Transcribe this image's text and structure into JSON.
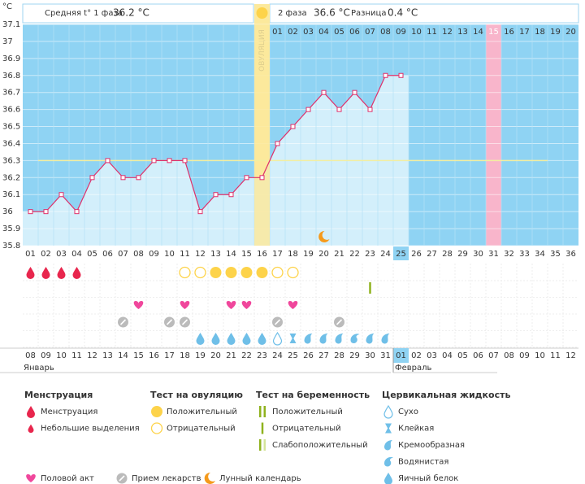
{
  "chart_data": {
    "type": "line",
    "y_unit": "°C",
    "header": {
      "phase1_label": "Средняя t° 1 фаза",
      "phase1_value": "36.2 °C",
      "phase2_label": "2 фаза",
      "phase2_value": "36.6 °C",
      "diff_label": "Разница",
      "diff_value": "0.4 °C"
    },
    "ovulation_label": "ОВУЛЯЦИЯ",
    "ovulation_day": "16",
    "today": "25",
    "expected_period": "31",
    "categories": [
      "01",
      "02",
      "03",
      "04",
      "05",
      "06",
      "07",
      "08",
      "09",
      "10",
      "11",
      "12",
      "13",
      "14",
      "15",
      "16",
      "17",
      "18",
      "19",
      "20",
      "21",
      "22",
      "23",
      "24",
      "25",
      "26",
      "27",
      "28",
      "29",
      "30",
      "31",
      "32",
      "33",
      "34",
      "35",
      "36"
    ],
    "post_ovulation_days": [
      null,
      null,
      null,
      null,
      null,
      null,
      null,
      null,
      null,
      null,
      null,
      null,
      null,
      null,
      null,
      null,
      "01",
      "02",
      "03",
      "04",
      "05",
      "06",
      "07",
      "08",
      "09",
      "10",
      "11",
      "12",
      "13",
      "14",
      "15",
      "16",
      "17",
      "18",
      "19",
      "20"
    ],
    "dates": [
      "08",
      "09",
      "10",
      "11",
      "12",
      "13",
      "14",
      "15",
      "16",
      "17",
      "18",
      "19",
      "20",
      "21",
      "22",
      "23",
      "24",
      "25",
      "26",
      "27",
      "28",
      "29",
      "30",
      "31",
      "01",
      "02",
      "03",
      "04",
      "05",
      "06",
      "07",
      "08",
      "09",
      "10",
      "11",
      "12"
    ],
    "weekend": [
      false,
      false,
      true,
      true,
      false,
      false,
      false,
      false,
      false,
      true,
      true,
      false,
      false,
      false,
      false,
      false,
      true,
      true,
      false,
      false,
      false,
      false,
      false,
      true,
      false,
      false,
      false,
      false,
      false,
      false,
      true,
      true,
      false,
      false,
      false,
      false
    ],
    "weekend_color": "#d0004b",
    "months": [
      "Январь",
      "Февраль"
    ],
    "values": [
      36,
      36,
      36.1,
      36,
      36.2,
      36.3,
      36.2,
      36.2,
      36.3,
      36.3,
      36.3,
      36,
      36.1,
      36.1,
      36.2,
      36.2,
      36.4,
      36.5,
      36.6,
      36.7,
      36.6,
      36.7,
      36.6,
      36.8,
      36.8,
      null,
      null,
      null,
      null,
      null,
      null,
      null,
      null,
      null,
      null,
      null
    ],
    "color": "#e0306a",
    "coverline": 36.3,
    "ylim": [
      35.8,
      37.1
    ],
    "yticks": [
      35.8,
      35.9,
      36,
      36.1,
      36.2,
      36.3,
      36.4,
      36.5,
      36.6,
      36.7,
      36.8,
      36.9,
      37,
      37.1
    ],
    "grid": true,
    "legend_groups": [
      {
        "title": "Менструация",
        "items": [
          "Менструация",
          "Небольшие выделения"
        ],
        "row": [
          "Менструация",
          "Менструация",
          "Менструация",
          "Менструация",
          null,
          null,
          null,
          null,
          null,
          null,
          null,
          null,
          null,
          null,
          null,
          null,
          null,
          null,
          null,
          null,
          null,
          null,
          null,
          null,
          null,
          null,
          null,
          null,
          null,
          null,
          null,
          null,
          null,
          null,
          null,
          null
        ]
      },
      {
        "title": "Тест на овуляцию",
        "items": [
          "Положительный",
          "Отрицательный"
        ],
        "row": [
          null,
          null,
          null,
          null,
          null,
          null,
          null,
          null,
          null,
          null,
          "Отрицательный",
          "Отрицательный",
          "Положительный",
          "Положительный",
          "Положительный",
          "Положительный",
          "Отрицательный",
          "Отрицательный",
          null,
          null,
          null,
          null,
          null,
          null,
          null,
          null,
          null,
          null,
          null,
          null,
          null,
          null,
          null,
          null,
          null,
          null
        ]
      },
      {
        "title": "Тест на беременность",
        "items": [
          "Положительный",
          "Отрицательный",
          "Слабоположительный"
        ],
        "row": [
          null,
          null,
          null,
          null,
          null,
          null,
          null,
          null,
          null,
          null,
          null,
          null,
          null,
          null,
          null,
          null,
          null,
          null,
          null,
          null,
          null,
          null,
          "Отрицательный",
          null,
          null,
          null,
          null,
          null,
          null,
          null,
          null,
          null,
          null,
          null,
          null,
          null
        ]
      },
      {
        "title": "Цервикальная жидкость",
        "items": [
          "Сухо",
          "Клейкая",
          "Кремообразная",
          "Водянистая",
          "Яичный белок"
        ],
        "row": [
          null,
          null,
          null,
          null,
          null,
          null,
          null,
          null,
          null,
          null,
          null,
          "Яичный белок",
          "Яичный белок",
          "Яичный белок",
          "Яичный белок",
          "Яичный белок",
          "Сухо",
          "Клейкая",
          "Кремообразная",
          "Кремообразная",
          "Кремообразная",
          "Водянистая",
          "Кремообразная",
          "Кремообразная",
          null,
          null,
          null,
          null,
          null,
          null,
          null,
          null,
          null,
          null,
          null,
          null
        ]
      }
    ],
    "extra": [
      {
        "label": "Половой акт",
        "row": [
          null,
          null,
          null,
          null,
          null,
          null,
          null,
          true,
          null,
          null,
          true,
          null,
          null,
          true,
          true,
          null,
          null,
          true,
          null,
          null,
          null,
          null,
          null,
          null,
          null,
          null,
          null,
          null,
          null,
          null,
          null,
          null,
          null,
          null,
          null,
          null
        ]
      },
      {
        "label": "Прием лекарств",
        "row": [
          null,
          null,
          null,
          null,
          null,
          null,
          true,
          null,
          null,
          true,
          true,
          null,
          null,
          null,
          null,
          null,
          true,
          null,
          null,
          null,
          true,
          null,
          null,
          null,
          null,
          null,
          null,
          null,
          null,
          null,
          null,
          null,
          null,
          null,
          null,
          null
        ]
      },
      {
        "label": "Лунный календарь",
        "row": [
          null,
          null,
          null,
          null,
          null,
          null,
          null,
          null,
          null,
          null,
          null,
          null,
          null,
          null,
          null,
          null,
          null,
          null,
          null,
          true,
          null,
          null,
          null,
          null,
          null,
          null,
          null,
          null,
          null,
          null,
          null,
          null,
          null,
          null,
          null,
          null
        ]
      }
    ]
  }
}
